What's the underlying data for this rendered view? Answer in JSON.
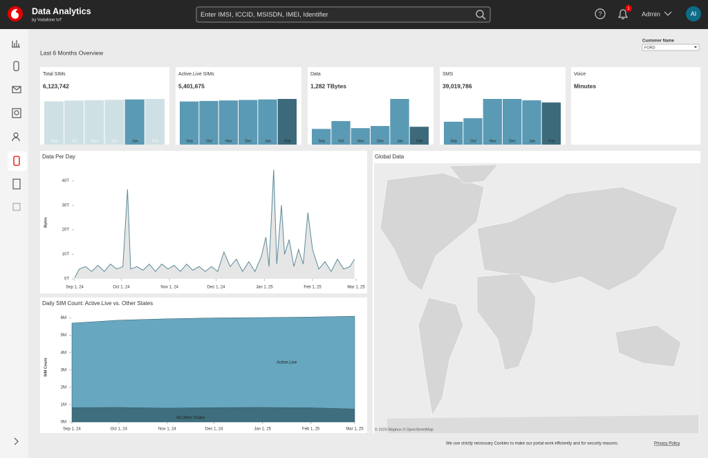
{
  "header": {
    "title": "Data Analytics",
    "subtitle": "by Vodafone IoT",
    "search_placeholder": "Enter IMSI, ICCID, MSISDN, IMEI, Identifier",
    "notifications": "1",
    "user": "Admin",
    "avatar": "AI"
  },
  "overview_title": "Last 6 Months Overview",
  "filter": {
    "label": "Customer Name",
    "value": "FORD"
  },
  "kpis": [
    {
      "title": "Total SIMs",
      "value": "6,123,742",
      "categories": [
        "Sep",
        "Oct",
        "Nov",
        "Dec",
        "Jan",
        "Feb"
      ],
      "values": [
        5.8,
        5.9,
        5.95,
        6.0,
        6.05,
        6.12
      ],
      "colors": [
        "#cfe0e5",
        "#cfe0e5",
        "#cfe0e5",
        "#cfe0e5",
        "#5b9ab4",
        "#cfe0e5"
      ]
    },
    {
      "title": "Active.Live SIMs",
      "value": "5,401,675",
      "categories": [
        "Sep",
        "Oct",
        "Nov",
        "Dec",
        "Jan",
        "Feb"
      ],
      "values": [
        5.1,
        5.16,
        5.22,
        5.28,
        5.34,
        5.4
      ],
      "colors": [
        "#5b9ab4",
        "#5b9ab4",
        "#5b9ab4",
        "#5b9ab4",
        "#5b9ab4",
        "#3c6a7b"
      ]
    },
    {
      "title": "Data",
      "value": "1,282 TBytes",
      "categories": [
        "Sep",
        "Oct",
        "Nov",
        "Dec",
        "Jan",
        "Feb"
      ],
      "values": [
        146,
        219,
        153,
        173,
        425,
        166
      ],
      "colors": [
        "#5b9ab4",
        "#5b9ab4",
        "#5b9ab4",
        "#5b9ab4",
        "#5b9ab4",
        "#3c6a7b"
      ]
    },
    {
      "title": "SMS",
      "value": "39,019,786",
      "categories": [
        "Sep",
        "Oct",
        "Nov",
        "Dec",
        "Jan",
        "Feb"
      ],
      "values": [
        3.93,
        4.54,
        7.85,
        7.85,
        7.61,
        7.24
      ],
      "colors": [
        "#5b9ab4",
        "#5b9ab4",
        "#5b9ab4",
        "#5b9ab4",
        "#5b9ab4",
        "#3c6a7b"
      ]
    },
    {
      "title": "Voice",
      "value": "Minutes"
    }
  ],
  "chart_data": [
    {
      "type": "line",
      "title": "Data Per Day",
      "y_label": "Bytes",
      "color": "#5a8a98",
      "fill": "#e6e6e6",
      "x": [
        "Sep 1, 24",
        "Sep 4, 24",
        "Sep 8, 24",
        "Sep 12, 24",
        "Sep 16, 24",
        "Sep 20, 24",
        "Sep 24, 24",
        "Sep 28, 24",
        "Oct 2, 24",
        "Oct 5, 24",
        "Oct 7, 24",
        "Oct 11, 24",
        "Oct 15, 24",
        "Oct 19, 24",
        "Oct 23, 24",
        "Oct 27, 24",
        "Oct 31, 24",
        "Nov 4, 24",
        "Nov 8, 24",
        "Nov 12, 24",
        "Nov 16, 24",
        "Nov 20, 24",
        "Nov 24, 24",
        "Nov 28, 24",
        "Dec 2, 24",
        "Dec 6, 24",
        "Dec 10, 24",
        "Dec 14, 24",
        "Dec 18, 24",
        "Dec 22, 24",
        "Dec 26, 24",
        "Dec 30, 24",
        "Jan 2, 25",
        "Jan 4, 25",
        "Jan 7, 25",
        "Jan 9, 25",
        "Jan 12, 25",
        "Jan 14, 25",
        "Jan 17, 25",
        "Jan 20, 25",
        "Jan 23, 25",
        "Jan 26, 25",
        "Jan 29, 25",
        "Feb 1, 25",
        "Feb 5, 25",
        "Feb 9, 25",
        "Feb 13, 25",
        "Feb 17, 25",
        "Feb 21, 25",
        "Feb 25, 25",
        "Feb 28, 25"
      ],
      "values": [
        0.5,
        4,
        5,
        3,
        5.5,
        3,
        6,
        4,
        5,
        36.5,
        4,
        5,
        3.5,
        6,
        3,
        6,
        4,
        5.5,
        3,
        6,
        3.5,
        5,
        3,
        5,
        3,
        11,
        5,
        8,
        3,
        7,
        3,
        9,
        17,
        5,
        44.5,
        6,
        30,
        10,
        16,
        5,
        12,
        6,
        27,
        12,
        4,
        7,
        3,
        8,
        4,
        5,
        8
      ],
      "xlim": [
        "Sep 1, 24",
        "Mar 1, 25"
      ],
      "xticks": [
        "Sep 1, 24",
        "Oct 1, 24",
        "Nov 1, 24",
        "Dec 1, 24",
        "Jan 1, 25",
        "Feb 1, 25",
        "Mar 1, 25"
      ],
      "ylim": [
        0,
        46
      ],
      "yticks": [
        {
          "value": 0,
          "label": "0T"
        },
        {
          "value": 10,
          "label": "10T"
        },
        {
          "value": 20,
          "label": "20T"
        },
        {
          "value": 30,
          "label": "30T"
        },
        {
          "value": 40,
          "label": "40T"
        }
      ]
    },
    {
      "type": "area",
      "stacked": true,
      "title": "Daily SIM Count: Active.Live vs. Other States",
      "y_label": "SIM Count",
      "x": [
        "Sep 1, 24",
        "Oct 1, 24",
        "Nov 1, 24",
        "Dec 1, 24",
        "Jan 1, 25",
        "Feb 1, 25",
        "Mar 1, 25"
      ],
      "series": [
        {
          "name": "All.Other.States",
          "color": "#3f6f7e",
          "values": [
            0.83,
            0.84,
            0.8,
            0.83,
            0.84,
            0.82,
            0.75
          ]
        },
        {
          "name": "Active.Live",
          "color": "#67a7bf",
          "values": [
            4.87,
            5.03,
            5.15,
            5.17,
            5.18,
            5.23,
            5.35
          ]
        }
      ],
      "xlim": [
        "Sep 1, 24",
        "Mar 1, 25"
      ],
      "xticks": [
        "Sep 1, 24",
        "Oct 1, 24",
        "Nov 1, 24",
        "Dec 1, 24",
        "Jan 1, 25",
        "Feb 1, 25",
        "Mar 1, 25"
      ],
      "ylim": [
        0,
        6.3
      ],
      "yticks": [
        {
          "value": 0,
          "label": "0M"
        },
        {
          "value": 1,
          "label": "1M"
        },
        {
          "value": 2,
          "label": "2M"
        },
        {
          "value": 3,
          "label": "3M"
        },
        {
          "value": 4,
          "label": "4M"
        },
        {
          "value": 5,
          "label": "5M"
        },
        {
          "value": 6,
          "label": "6M"
        }
      ]
    }
  ],
  "map": {
    "title": "Global Data",
    "attribution": "© 2025 Mapbox © OpenStreetMap"
  },
  "cookie": {
    "text": "We use strictly necessary Cookies to make our portal work efficiently and for security reasons.",
    "link": "Privacy Policy"
  }
}
